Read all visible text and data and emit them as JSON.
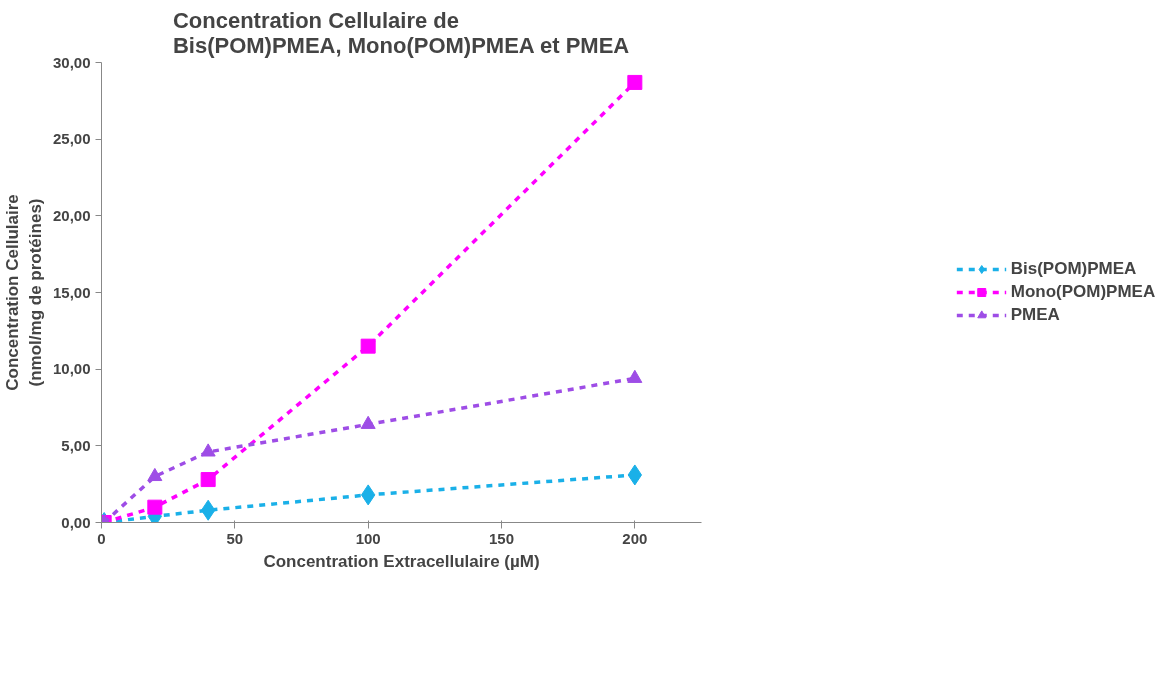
{
  "chart_data": {
    "type": "line",
    "title": "Concentration Cellulaire de\nBis(POM)PMEA, Mono(POM)PMEA et PMEA",
    "xlabel": "Concentration Extracellulaire (µM)",
    "ylabel": "Concentration Cellulaire\n(nmol/mg de protéines)",
    "x": [
      1,
      20,
      40,
      100,
      200
    ],
    "series": [
      {
        "name": "Bis(POM)PMEA",
        "color": "#1ab0e8",
        "marker": "diamond",
        "values": [
          0,
          0.4,
          0.8,
          1.8,
          3.1
        ]
      },
      {
        "name": "Mono(POM)PMEA",
        "color": "#ff00ff",
        "marker": "square",
        "values": [
          0,
          1.0,
          2.8,
          11.5,
          28.7
        ]
      },
      {
        "name": "PMEA",
        "color": "#9e4de6",
        "marker": "triangle",
        "values": [
          0,
          3.0,
          4.6,
          6.4,
          9.4
        ]
      }
    ],
    "xlim": [
      0,
      225
    ],
    "xticks": [
      0,
      50,
      100,
      150,
      200
    ],
    "ylim": [
      0,
      30
    ],
    "yticks": [
      {
        "value": 0,
        "label": "0,00"
      },
      {
        "value": 5,
        "label": "5,00"
      },
      {
        "value": 10,
        "label": "10,00"
      },
      {
        "value": 15,
        "label": "15,00"
      },
      {
        "value": 20,
        "label": "20,00"
      },
      {
        "value": 25,
        "label": "25,00"
      },
      {
        "value": 30,
        "label": "30,00"
      }
    ],
    "grid": false,
    "legend": "right",
    "line_style": "dashed"
  }
}
